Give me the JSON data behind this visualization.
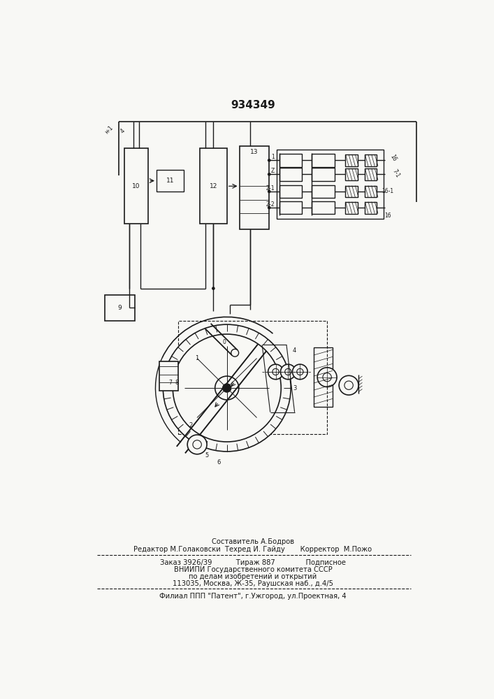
{
  "patent_number": "934349",
  "bg_color": "#f8f8f5",
  "line_color": "#1a1a1a",
  "title_fontsize": 11,
  "body_fontsize": 7.2,
  "small_fontsize": 6.5,
  "footer_line1": "Составитель А.Бодров",
  "footer_line2": "Редактор М.Голаковски  Техред И. Гайду       Корректор  М.Пожо",
  "footer_line3": "Заказ 3926/39           Тираж 887              Подписное",
  "footer_line4": "ВНИИПИ Государственного комитета СССР",
  "footer_line5": "по делам изобретений и открытий",
  "footer_line6": "113035, Москва, Ж-35, Раушская наб., д.4/5",
  "footer_line7": "Филиал ППП \"Патент\", г.Ужгород, ул.Проектная, 4"
}
